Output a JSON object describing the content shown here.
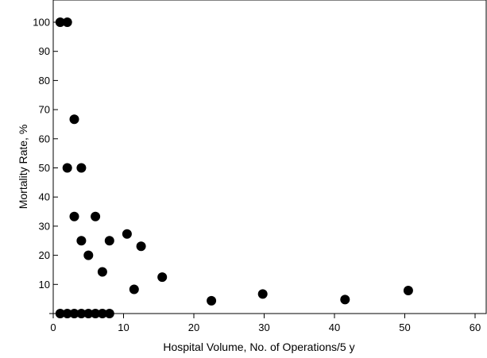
{
  "chart_data": {
    "type": "scatter",
    "title": "",
    "xlabel": "Hospital Volume, No. of Operations/5 y",
    "ylabel": "Mortality Rate, %",
    "xlim": [
      0,
      60
    ],
    "ylim": [
      0,
      100
    ],
    "xticks": [
      0,
      10,
      20,
      30,
      40,
      50,
      60
    ],
    "yticks": [
      10,
      20,
      30,
      40,
      50,
      60,
      70,
      80,
      90,
      100
    ],
    "grid": false,
    "legend": "none",
    "marker_color": "#000000",
    "x": [
      1,
      2,
      1,
      2,
      3,
      4,
      5,
      6,
      7,
      8,
      2,
      4,
      3,
      3,
      4,
      5,
      6,
      7,
      8,
      10.5,
      11.5,
      12.5,
      15.5,
      22.5,
      29.8,
      41.5,
      50.5
    ],
    "y": [
      100,
      100,
      0,
      0,
      0,
      0,
      0,
      0,
      0,
      0,
      50,
      50,
      66.7,
      33.3,
      25,
      20,
      33.3,
      14.3,
      25,
      27.3,
      8.3,
      23.1,
      12.5,
      4.4,
      6.7,
      4.8,
      7.9
    ]
  }
}
